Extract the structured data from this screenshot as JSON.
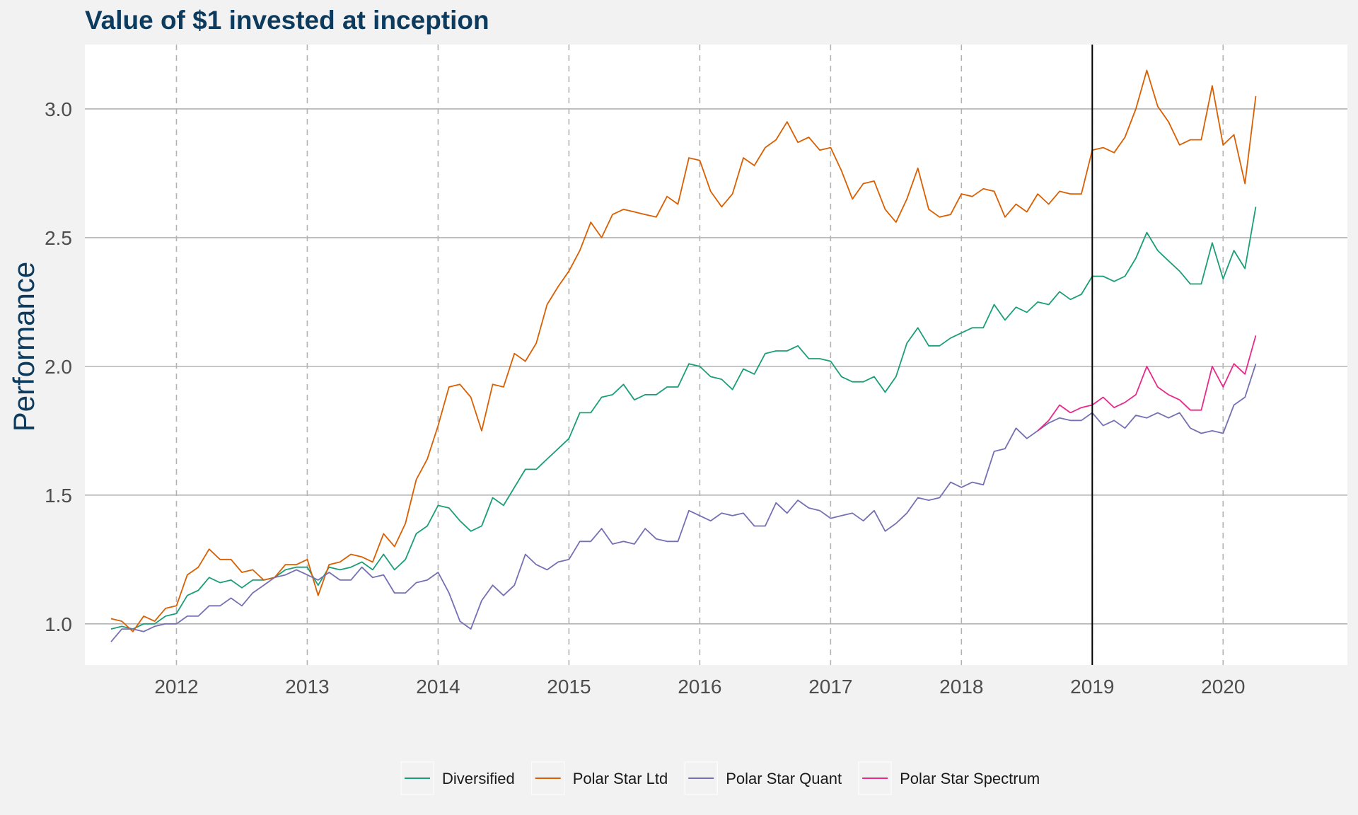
{
  "chart_data": {
    "type": "line",
    "title": "Value of $1 invested at inception",
    "xlabel": "",
    "ylabel": "Performance",
    "xlim": [
      2011.3,
      2020.95
    ],
    "ylim": [
      0.84,
      3.25
    ],
    "x_ticks": [
      2012,
      2013,
      2014,
      2015,
      2016,
      2017,
      2018,
      2019,
      2020
    ],
    "y_ticks": [
      1.0,
      1.5,
      2.0,
      2.5,
      3.0
    ],
    "y_tick_labels": [
      "1.0",
      "1.5",
      "2.0",
      "2.5",
      "3.0"
    ],
    "x_grid": "dashed",
    "y_grid": "solid",
    "vline_x": 2019.0,
    "legend_position": "bottom",
    "series": [
      {
        "name": "Diversified",
        "color": "#1b9e77",
        "x": [
          2011.5,
          2011.583,
          2011.667,
          2011.75,
          2011.833,
          2011.917,
          2012.0,
          2012.083,
          2012.167,
          2012.25,
          2012.333,
          2012.417,
          2012.5,
          2012.583,
          2012.667,
          2012.75,
          2012.833,
          2012.917,
          2013.0,
          2013.083,
          2013.167,
          2013.25,
          2013.333,
          2013.417,
          2013.5,
          2013.583,
          2013.667,
          2013.75,
          2013.833,
          2013.917,
          2014.0,
          2014.083,
          2014.167,
          2014.25,
          2014.333,
          2014.417,
          2014.5,
          2014.583,
          2014.667,
          2014.75,
          2014.833,
          2014.917,
          2015.0,
          2015.083,
          2015.167,
          2015.25,
          2015.333,
          2015.417,
          2015.5,
          2015.583,
          2015.667,
          2015.75,
          2015.833,
          2015.917,
          2016.0,
          2016.083,
          2016.167,
          2016.25,
          2016.333,
          2016.417,
          2016.5,
          2016.583,
          2016.667,
          2016.75,
          2016.833,
          2016.917,
          2017.0,
          2017.083,
          2017.167,
          2017.25,
          2017.333,
          2017.417,
          2017.5,
          2017.583,
          2017.667,
          2017.75,
          2017.833,
          2017.917,
          2018.0,
          2018.083,
          2018.167,
          2018.25,
          2018.333,
          2018.417,
          2018.5,
          2018.583,
          2018.667,
          2018.75,
          2018.833,
          2018.917,
          2019.0,
          2019.083,
          2019.167,
          2019.25,
          2019.333,
          2019.417,
          2019.5,
          2019.583,
          2019.667,
          2019.75,
          2019.833,
          2019.917,
          2020.0,
          2020.083,
          2020.167,
          2020.25
        ],
        "values": [
          0.98,
          0.99,
          0.98,
          1.0,
          1.0,
          1.03,
          1.04,
          1.11,
          1.13,
          1.18,
          1.16,
          1.17,
          1.14,
          1.17,
          1.17,
          1.18,
          1.21,
          1.22,
          1.22,
          1.15,
          1.22,
          1.21,
          1.22,
          1.24,
          1.21,
          1.27,
          1.21,
          1.25,
          1.35,
          1.38,
          1.46,
          1.45,
          1.4,
          1.36,
          1.38,
          1.49,
          1.46,
          1.53,
          1.6,
          1.6,
          1.64,
          1.68,
          1.72,
          1.82,
          1.82,
          1.88,
          1.89,
          1.93,
          1.87,
          1.89,
          1.89,
          1.92,
          1.92,
          2.01,
          2.0,
          1.96,
          1.95,
          1.91,
          1.99,
          1.97,
          2.05,
          2.06,
          2.06,
          2.08,
          2.03,
          2.03,
          2.02,
          1.96,
          1.94,
          1.94,
          1.96,
          1.9,
          1.96,
          2.09,
          2.15,
          2.08,
          2.08,
          2.11,
          2.13,
          2.15,
          2.15,
          2.24,
          2.18,
          2.23,
          2.21,
          2.25,
          2.24,
          2.29,
          2.26,
          2.28,
          2.35,
          2.35,
          2.33,
          2.35,
          2.42,
          2.52,
          2.45,
          2.41,
          2.37,
          2.32,
          2.32,
          2.48,
          2.34,
          2.45,
          2.38,
          2.62
        ]
      },
      {
        "name": "Polar Star Ltd",
        "color": "#d95f02",
        "x": [
          2011.5,
          2011.583,
          2011.667,
          2011.75,
          2011.833,
          2011.917,
          2012.0,
          2012.083,
          2012.167,
          2012.25,
          2012.333,
          2012.417,
          2012.5,
          2012.583,
          2012.667,
          2012.75,
          2012.833,
          2012.917,
          2013.0,
          2013.083,
          2013.167,
          2013.25,
          2013.333,
          2013.417,
          2013.5,
          2013.583,
          2013.667,
          2013.75,
          2013.833,
          2013.917,
          2014.0,
          2014.083,
          2014.167,
          2014.25,
          2014.333,
          2014.417,
          2014.5,
          2014.583,
          2014.667,
          2014.75,
          2014.833,
          2014.917,
          2015.0,
          2015.083,
          2015.167,
          2015.25,
          2015.333,
          2015.417,
          2015.5,
          2015.583,
          2015.667,
          2015.75,
          2015.833,
          2015.917,
          2016.0,
          2016.083,
          2016.167,
          2016.25,
          2016.333,
          2016.417,
          2016.5,
          2016.583,
          2016.667,
          2016.75,
          2016.833,
          2016.917,
          2017.0,
          2017.083,
          2017.167,
          2017.25,
          2017.333,
          2017.417,
          2017.5,
          2017.583,
          2017.667,
          2017.75,
          2017.833,
          2017.917,
          2018.0,
          2018.083,
          2018.167,
          2018.25,
          2018.333,
          2018.417,
          2018.5,
          2018.583,
          2018.667,
          2018.75,
          2018.833,
          2018.917,
          2019.0,
          2019.083,
          2019.167,
          2019.25,
          2019.333,
          2019.417,
          2019.5,
          2019.583,
          2019.667,
          2019.75,
          2019.833,
          2019.917,
          2020.0,
          2020.083,
          2020.167,
          2020.25
        ],
        "values": [
          1.02,
          1.01,
          0.97,
          1.03,
          1.01,
          1.06,
          1.07,
          1.19,
          1.22,
          1.29,
          1.25,
          1.25,
          1.2,
          1.21,
          1.17,
          1.18,
          1.23,
          1.23,
          1.25,
          1.11,
          1.23,
          1.24,
          1.27,
          1.26,
          1.24,
          1.35,
          1.3,
          1.39,
          1.56,
          1.64,
          1.77,
          1.92,
          1.93,
          1.88,
          1.75,
          1.93,
          1.92,
          2.05,
          2.02,
          2.09,
          2.24,
          2.31,
          2.37,
          2.45,
          2.56,
          2.5,
          2.59,
          2.61,
          2.6,
          2.59,
          2.58,
          2.66,
          2.63,
          2.81,
          2.8,
          2.68,
          2.62,
          2.67,
          2.81,
          2.78,
          2.85,
          2.88,
          2.95,
          2.87,
          2.89,
          2.84,
          2.85,
          2.76,
          2.65,
          2.71,
          2.72,
          2.61,
          2.56,
          2.65,
          2.77,
          2.61,
          2.58,
          2.59,
          2.67,
          2.66,
          2.69,
          2.68,
          2.58,
          2.63,
          2.6,
          2.67,
          2.63,
          2.68,
          2.67,
          2.67,
          2.84,
          2.85,
          2.83,
          2.89,
          3.0,
          3.15,
          3.01,
          2.95,
          2.86,
          2.88,
          2.88,
          3.09,
          2.86,
          2.9,
          2.71,
          3.05
        ]
      },
      {
        "name": "Polar Star Quant",
        "color": "#7570b3",
        "x": [
          2011.5,
          2011.583,
          2011.667,
          2011.75,
          2011.833,
          2011.917,
          2012.0,
          2012.083,
          2012.167,
          2012.25,
          2012.333,
          2012.417,
          2012.5,
          2012.583,
          2012.667,
          2012.75,
          2012.833,
          2012.917,
          2013.0,
          2013.083,
          2013.167,
          2013.25,
          2013.333,
          2013.417,
          2013.5,
          2013.583,
          2013.667,
          2013.75,
          2013.833,
          2013.917,
          2014.0,
          2014.083,
          2014.167,
          2014.25,
          2014.333,
          2014.417,
          2014.5,
          2014.583,
          2014.667,
          2014.75,
          2014.833,
          2014.917,
          2015.0,
          2015.083,
          2015.167,
          2015.25,
          2015.333,
          2015.417,
          2015.5,
          2015.583,
          2015.667,
          2015.75,
          2015.833,
          2015.917,
          2016.0,
          2016.083,
          2016.167,
          2016.25,
          2016.333,
          2016.417,
          2016.5,
          2016.583,
          2016.667,
          2016.75,
          2016.833,
          2016.917,
          2017.0,
          2017.083,
          2017.167,
          2017.25,
          2017.333,
          2017.417,
          2017.5,
          2017.583,
          2017.667,
          2017.75,
          2017.833,
          2017.917,
          2018.0,
          2018.083,
          2018.167,
          2018.25,
          2018.333,
          2018.417,
          2018.5,
          2018.583,
          2018.667,
          2018.75,
          2018.833,
          2018.917,
          2019.0,
          2019.083,
          2019.167,
          2019.25,
          2019.333,
          2019.417,
          2019.5,
          2019.583,
          2019.667,
          2019.75,
          2019.833,
          2019.917,
          2020.0,
          2020.083,
          2020.167,
          2020.25
        ],
        "values": [
          0.93,
          0.98,
          0.98,
          0.97,
          0.99,
          1.0,
          1.0,
          1.03,
          1.03,
          1.07,
          1.07,
          1.1,
          1.07,
          1.12,
          1.15,
          1.18,
          1.19,
          1.21,
          1.19,
          1.17,
          1.2,
          1.17,
          1.17,
          1.22,
          1.18,
          1.19,
          1.12,
          1.12,
          1.16,
          1.17,
          1.2,
          1.12,
          1.01,
          0.98,
          1.09,
          1.15,
          1.11,
          1.15,
          1.27,
          1.23,
          1.21,
          1.24,
          1.25,
          1.32,
          1.32,
          1.37,
          1.31,
          1.32,
          1.31,
          1.37,
          1.33,
          1.32,
          1.32,
          1.44,
          1.42,
          1.4,
          1.43,
          1.42,
          1.43,
          1.38,
          1.38,
          1.47,
          1.43,
          1.48,
          1.45,
          1.44,
          1.41,
          1.42,
          1.43,
          1.4,
          1.44,
          1.36,
          1.39,
          1.43,
          1.49,
          1.48,
          1.49,
          1.55,
          1.53,
          1.55,
          1.54,
          1.67,
          1.68,
          1.76,
          1.72,
          1.75,
          1.78,
          1.8,
          1.79,
          1.79,
          1.82,
          1.77,
          1.79,
          1.76,
          1.81,
          1.8,
          1.82,
          1.8,
          1.82,
          1.76,
          1.74,
          1.75,
          1.74,
          1.85,
          1.88,
          2.01
        ]
      },
      {
        "name": "Polar Star Spectrum",
        "color": "#e7298a",
        "x": [
          2018.583,
          2018.667,
          2018.75,
          2018.833,
          2018.917,
          2019.0,
          2019.083,
          2019.167,
          2019.25,
          2019.333,
          2019.417,
          2019.5,
          2019.583,
          2019.667,
          2019.75,
          2019.833,
          2019.917,
          2020.0,
          2020.083,
          2020.167,
          2020.25
        ],
        "values": [
          1.75,
          1.79,
          1.85,
          1.82,
          1.84,
          1.85,
          1.88,
          1.84,
          1.86,
          1.89,
          2.0,
          1.92,
          1.89,
          1.87,
          1.83,
          1.83,
          2.0,
          1.92,
          2.01,
          1.97,
          2.12
        ]
      }
    ]
  }
}
